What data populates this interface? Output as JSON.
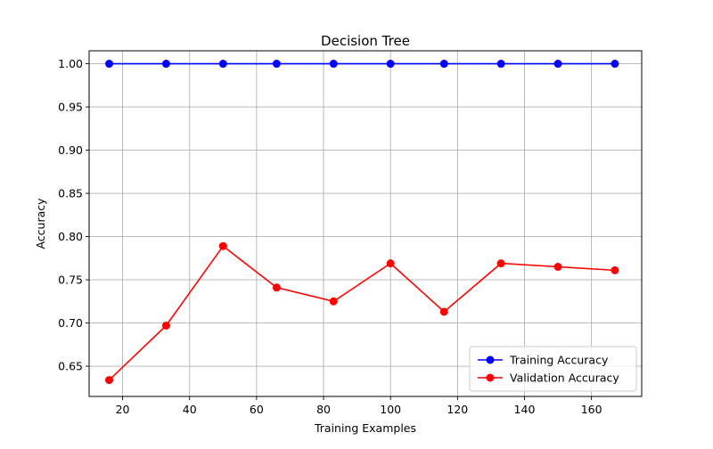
{
  "chart_data": {
    "type": "line",
    "title": "Decision Tree",
    "xlabel": "Training Examples",
    "ylabel": "Accuracy",
    "xlim": [
      10,
      175
    ],
    "ylim": [
      0.615,
      1.015
    ],
    "xticks": [
      20,
      40,
      60,
      80,
      100,
      120,
      140,
      160
    ],
    "yticks": [
      0.65,
      0.7,
      0.75,
      0.8,
      0.85,
      0.9,
      0.95,
      1.0
    ],
    "xtick_labels": [
      "20",
      "40",
      "60",
      "80",
      "100",
      "120",
      "140",
      "160"
    ],
    "ytick_labels": [
      "0.65",
      "0.70",
      "0.75",
      "0.80",
      "0.85",
      "0.90",
      "0.95",
      "1.00"
    ],
    "grid": true,
    "legend_position": "lower-right",
    "x": [
      16,
      33,
      50,
      66,
      83,
      100,
      116,
      133,
      150,
      167
    ],
    "series": [
      {
        "name": "Training Accuracy",
        "color": "#0000ff",
        "marker": "circle",
        "values": [
          1.0,
          1.0,
          1.0,
          1.0,
          1.0,
          1.0,
          1.0,
          1.0,
          1.0,
          1.0
        ]
      },
      {
        "name": "Validation Accuracy",
        "color": "#ff0000",
        "marker": "circle",
        "values": [
          0.634,
          0.697,
          0.789,
          0.741,
          0.725,
          0.769,
          0.713,
          0.769,
          0.765,
          0.761
        ]
      }
    ]
  }
}
